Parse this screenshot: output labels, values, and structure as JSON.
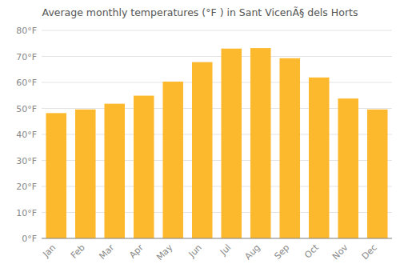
{
  "chart_data": {
    "type": "bar",
    "title": "Average monthly temperatures (°F ) in Sant VicenÃ§ dels Horts",
    "categories": [
      "Jan",
      "Feb",
      "Mar",
      "Apr",
      "May",
      "Jun",
      "Jul",
      "Aug",
      "Sep",
      "Oct",
      "Nov",
      "Dec"
    ],
    "values": [
      48.2,
      49.6,
      51.8,
      54.9,
      60.3,
      67.8,
      73.0,
      73.2,
      69.3,
      61.9,
      53.8,
      49.6
    ],
    "color": "#FDB92E",
    "ylim": [
      0,
      80
    ],
    "yticks": [
      {
        "value": 0,
        "label": "0°F"
      },
      {
        "value": 10,
        "label": "10°F"
      },
      {
        "value": 20,
        "label": "20°F"
      },
      {
        "value": 30,
        "label": "30°F"
      },
      {
        "value": 40,
        "label": "40°F"
      },
      {
        "value": 50,
        "label": "50°F"
      },
      {
        "value": 60,
        "label": "60°F"
      },
      {
        "value": 70,
        "label": "70°F"
      },
      {
        "value": 80,
        "label": "80°F"
      }
    ],
    "grid": true
  }
}
